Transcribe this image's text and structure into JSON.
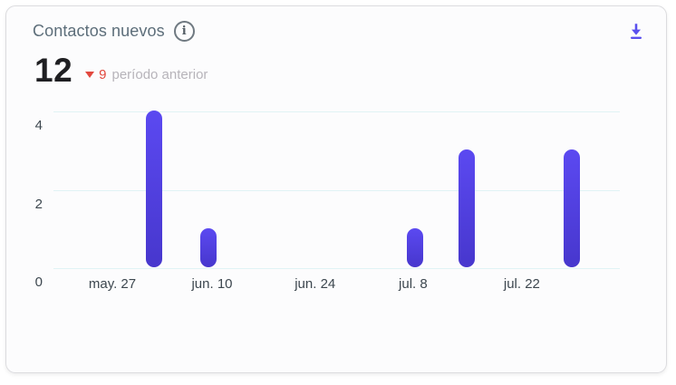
{
  "card": {
    "title": "Contactos nuevos",
    "info_icon": "i",
    "download_icon_name": "download-icon"
  },
  "metric": {
    "value": "12",
    "delta_direction": "down",
    "delta_value": "9",
    "delta_label": "período anterior"
  },
  "colors": {
    "accent_indigo": "#5a50ee",
    "bar_gradient_top": "#5b49f1",
    "bar_gradient_bottom": "#4737cd",
    "gridline": "#e0f3f5",
    "axis_label": "#3d474f",
    "title_text": "#5d6e7a",
    "metric_text": "#1f1f22",
    "delta_red": "#e2483e",
    "delta_label_gray": "#b7b4ba",
    "card_border": "#dcdcdf",
    "card_bg": "#fcfcfd"
  },
  "chart_data": {
    "type": "bar",
    "title": "Contactos nuevos",
    "total_current_period": 12,
    "total_previous_period": 9,
    "ylim": [
      0,
      4
    ],
    "y_ticks": [
      0,
      2,
      4
    ],
    "grid": true,
    "legend": false,
    "x_ticks": [
      {
        "label": "may. 27",
        "x_pct": 10.4
      },
      {
        "label": "jun. 10",
        "x_pct": 28.0
      },
      {
        "label": "jun. 24",
        "x_pct": 46.2
      },
      {
        "label": "jul. 8",
        "x_pct": 63.5
      },
      {
        "label": "jul. 22",
        "x_pct": 82.7
      }
    ],
    "bars": [
      {
        "date_estimate": "jun. 2",
        "value": 4,
        "x_pct": 17.8
      },
      {
        "date_estimate": "jun. 10",
        "value": 1,
        "x_pct": 27.4
      },
      {
        "date_estimate": "jul. 8",
        "value": 1,
        "x_pct": 63.8
      },
      {
        "date_estimate": "jul. 15",
        "value": 3,
        "x_pct": 73.0
      },
      {
        "date_estimate": "jul. 29",
        "value": 3,
        "x_pct": 91.5
      }
    ]
  }
}
